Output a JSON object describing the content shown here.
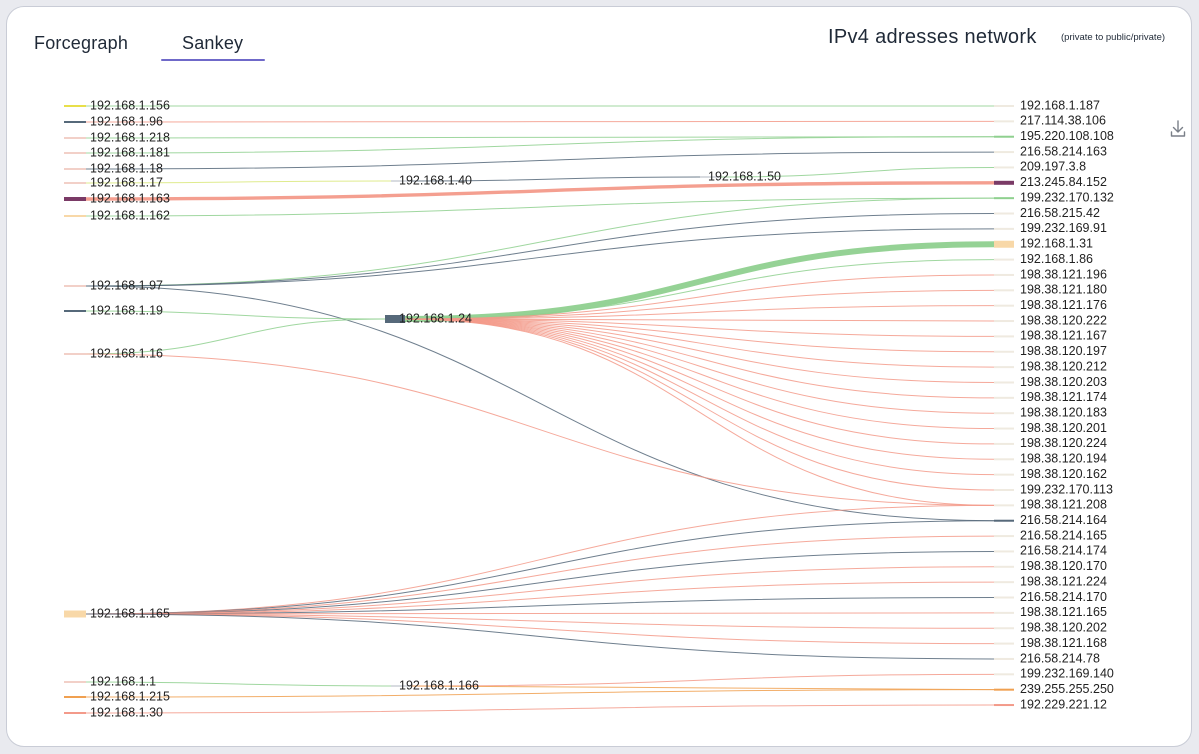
{
  "tabs": [
    {
      "label": "Forcegraph",
      "active": false
    },
    {
      "label": "Sankey",
      "active": true
    }
  ],
  "header": {
    "title": "IPv4 adresses network",
    "subtitle": "(private to public/private)",
    "download_icon": "download-icon"
  },
  "colors": {
    "accent": "#6f69c9",
    "green": "#8fd08f",
    "salmon": "#f39a8a",
    "slate": "#56697a",
    "orange": "#f0a050",
    "yellow": "#e8df4a",
    "peach": "#f8d8a8",
    "purple": "#7a3a66",
    "lime": "#d9e87a"
  },
  "chart_data": {
    "type": "sankey",
    "nodes": [
      {
        "id": "192.168.1.156",
        "column": 0
      },
      {
        "id": "192.168.1.96",
        "column": 0
      },
      {
        "id": "192.168.1.218",
        "column": 0
      },
      {
        "id": "192.168.1.181",
        "column": 0
      },
      {
        "id": "192.168.1.18",
        "column": 0
      },
      {
        "id": "192.168.1.17",
        "column": 0
      },
      {
        "id": "192.168.1.163",
        "column": 0
      },
      {
        "id": "192.168.1.162",
        "column": 0
      },
      {
        "id": "192.168.1.97",
        "column": 0
      },
      {
        "id": "192.168.1.19",
        "column": 0
      },
      {
        "id": "192.168.1.16",
        "column": 0
      },
      {
        "id": "192.168.1.165",
        "column": 0
      },
      {
        "id": "192.168.1.1",
        "column": 0
      },
      {
        "id": "192.168.1.215",
        "column": 0
      },
      {
        "id": "192.168.1.30",
        "column": 0
      },
      {
        "id": "192.168.1.40",
        "column": 1
      },
      {
        "id": "192.168.1.24",
        "column": 1
      },
      {
        "id": "192.168.1.166",
        "column": 1
      },
      {
        "id": "192.168.1.50",
        "column": 2
      },
      {
        "id": "192.168.1.187",
        "column": 3
      },
      {
        "id": "217.114.38.106",
        "column": 3
      },
      {
        "id": "195.220.108.108",
        "column": 3
      },
      {
        "id": "216.58.214.163",
        "column": 3
      },
      {
        "id": "209.197.3.8",
        "column": 3
      },
      {
        "id": "213.245.84.152",
        "column": 3
      },
      {
        "id": "199.232.170.132",
        "column": 3
      },
      {
        "id": "216.58.215.42",
        "column": 3
      },
      {
        "id": "199.232.169.91",
        "column": 3
      },
      {
        "id": "192.168.1.31",
        "column": 3
      },
      {
        "id": "192.168.1.86",
        "column": 3
      },
      {
        "id": "198.38.121.196",
        "column": 3
      },
      {
        "id": "198.38.121.180",
        "column": 3
      },
      {
        "id": "198.38.121.176",
        "column": 3
      },
      {
        "id": "198.38.120.222",
        "column": 3
      },
      {
        "id": "198.38.121.167",
        "column": 3
      },
      {
        "id": "198.38.120.197",
        "column": 3
      },
      {
        "id": "198.38.120.212",
        "column": 3
      },
      {
        "id": "198.38.120.203",
        "column": 3
      },
      {
        "id": "198.38.121.174",
        "column": 3
      },
      {
        "id": "198.38.120.183",
        "column": 3
      },
      {
        "id": "198.38.120.201",
        "column": 3
      },
      {
        "id": "198.38.120.224",
        "column": 3
      },
      {
        "id": "198.38.120.194",
        "column": 3
      },
      {
        "id": "198.38.120.162",
        "column": 3
      },
      {
        "id": "199.232.170.113",
        "column": 3
      },
      {
        "id": "198.38.121.208",
        "column": 3
      },
      {
        "id": "216.58.214.164",
        "column": 3
      },
      {
        "id": "216.58.214.165",
        "column": 3
      },
      {
        "id": "216.58.214.174",
        "column": 3
      },
      {
        "id": "198.38.120.170",
        "column": 3
      },
      {
        "id": "198.38.121.224",
        "column": 3
      },
      {
        "id": "216.58.214.170",
        "column": 3
      },
      {
        "id": "198.38.121.165",
        "column": 3
      },
      {
        "id": "198.38.120.202",
        "column": 3
      },
      {
        "id": "198.38.121.168",
        "column": 3
      },
      {
        "id": "216.58.214.78",
        "column": 3
      },
      {
        "id": "199.232.169.140",
        "column": 3
      },
      {
        "id": "239.255.255.250",
        "column": 3
      },
      {
        "id": "192.229.221.12",
        "column": 3
      }
    ],
    "links": [
      {
        "source": "192.168.1.156",
        "target": "192.168.1.187",
        "value": 1,
        "color": "green"
      },
      {
        "source": "192.168.1.96",
        "target": "217.114.38.106",
        "value": 1,
        "color": "salmon"
      },
      {
        "source": "192.168.1.218",
        "target": "195.220.108.108",
        "value": 1,
        "color": "green"
      },
      {
        "source": "192.168.1.181",
        "target": "195.220.108.108",
        "value": 1,
        "color": "green"
      },
      {
        "source": "192.168.1.18",
        "target": "216.58.214.163",
        "value": 1,
        "color": "slate"
      },
      {
        "source": "192.168.1.17",
        "target": "192.168.1.40",
        "value": 1,
        "color": "lime"
      },
      {
        "source": "192.168.1.40",
        "target": "192.168.1.50",
        "value": 1,
        "color": "slate"
      },
      {
        "source": "192.168.1.50",
        "target": "209.197.3.8",
        "value": 1,
        "color": "green"
      },
      {
        "source": "192.168.1.163",
        "target": "213.245.84.152",
        "value": 3,
        "color": "salmon"
      },
      {
        "source": "192.168.1.162",
        "target": "199.232.170.132",
        "value": 1,
        "color": "green"
      },
      {
        "source": "192.168.1.97",
        "target": "199.232.170.132",
        "value": 1,
        "color": "green"
      },
      {
        "source": "192.168.1.97",
        "target": "216.58.215.42",
        "value": 1,
        "color": "slate"
      },
      {
        "source": "192.168.1.97",
        "target": "199.232.169.91",
        "value": 1,
        "color": "slate"
      },
      {
        "source": "192.168.1.97",
        "target": "216.58.214.164",
        "value": 1,
        "color": "slate"
      },
      {
        "source": "192.168.1.19",
        "target": "192.168.1.24",
        "value": 1,
        "color": "green"
      },
      {
        "source": "192.168.1.16",
        "target": "192.168.1.24",
        "value": 1,
        "color": "green"
      },
      {
        "source": "192.168.1.16",
        "target": "198.38.121.208",
        "value": 1,
        "color": "salmon"
      },
      {
        "source": "192.168.1.24",
        "target": "192.168.1.31",
        "value": 6,
        "color": "green"
      },
      {
        "source": "192.168.1.24",
        "target": "192.168.1.86",
        "value": 1,
        "color": "green"
      },
      {
        "source": "192.168.1.24",
        "target": "198.38.121.196",
        "value": 1,
        "color": "salmon"
      },
      {
        "source": "192.168.1.24",
        "target": "198.38.121.180",
        "value": 1,
        "color": "salmon"
      },
      {
        "source": "192.168.1.24",
        "target": "198.38.121.176",
        "value": 1,
        "color": "salmon"
      },
      {
        "source": "192.168.1.24",
        "target": "198.38.120.222",
        "value": 1,
        "color": "salmon"
      },
      {
        "source": "192.168.1.24",
        "target": "198.38.121.167",
        "value": 1,
        "color": "salmon"
      },
      {
        "source": "192.168.1.24",
        "target": "198.38.120.197",
        "value": 1,
        "color": "salmon"
      },
      {
        "source": "192.168.1.24",
        "target": "198.38.120.212",
        "value": 1,
        "color": "salmon"
      },
      {
        "source": "192.168.1.24",
        "target": "198.38.120.203",
        "value": 1,
        "color": "salmon"
      },
      {
        "source": "192.168.1.24",
        "target": "198.38.121.174",
        "value": 1,
        "color": "salmon"
      },
      {
        "source": "192.168.1.24",
        "target": "198.38.120.183",
        "value": 1,
        "color": "salmon"
      },
      {
        "source": "192.168.1.24",
        "target": "198.38.120.201",
        "value": 1,
        "color": "salmon"
      },
      {
        "source": "192.168.1.24",
        "target": "198.38.120.224",
        "value": 1,
        "color": "salmon"
      },
      {
        "source": "192.168.1.24",
        "target": "198.38.120.194",
        "value": 1,
        "color": "salmon"
      },
      {
        "source": "192.168.1.24",
        "target": "198.38.120.162",
        "value": 1,
        "color": "salmon"
      },
      {
        "source": "192.168.1.24",
        "target": "199.232.170.113",
        "value": 1,
        "color": "salmon"
      },
      {
        "source": "192.168.1.24",
        "target": "198.38.121.208",
        "value": 1,
        "color": "salmon"
      },
      {
        "source": "192.168.1.165",
        "target": "198.38.121.208",
        "value": 1,
        "color": "salmon"
      },
      {
        "source": "192.168.1.165",
        "target": "216.58.214.164",
        "value": 1,
        "color": "slate"
      },
      {
        "source": "192.168.1.165",
        "target": "216.58.214.165",
        "value": 1,
        "color": "salmon"
      },
      {
        "source": "192.168.1.165",
        "target": "216.58.214.174",
        "value": 1,
        "color": "slate"
      },
      {
        "source": "192.168.1.165",
        "target": "198.38.120.170",
        "value": 1,
        "color": "salmon"
      },
      {
        "source": "192.168.1.165",
        "target": "198.38.121.224",
        "value": 1,
        "color": "salmon"
      },
      {
        "source": "192.168.1.165",
        "target": "216.58.214.170",
        "value": 1,
        "color": "slate"
      },
      {
        "source": "192.168.1.165",
        "target": "198.38.121.165",
        "value": 1,
        "color": "salmon"
      },
      {
        "source": "192.168.1.165",
        "target": "198.38.120.202",
        "value": 1,
        "color": "salmon"
      },
      {
        "source": "192.168.1.165",
        "target": "198.38.121.168",
        "value": 1,
        "color": "salmon"
      },
      {
        "source": "192.168.1.165",
        "target": "216.58.214.78",
        "value": 1,
        "color": "slate"
      },
      {
        "source": "192.168.1.1",
        "target": "192.168.1.166",
        "value": 1,
        "color": "green"
      },
      {
        "source": "192.168.1.166",
        "target": "199.232.169.140",
        "value": 1,
        "color": "salmon"
      },
      {
        "source": "192.168.1.166",
        "target": "239.255.255.250",
        "value": 1,
        "color": "orange"
      },
      {
        "source": "192.168.1.215",
        "target": "239.255.255.250",
        "value": 1,
        "color": "orange"
      },
      {
        "source": "192.168.1.30",
        "target": "192.229.221.12",
        "value": 1,
        "color": "salmon"
      }
    ]
  }
}
